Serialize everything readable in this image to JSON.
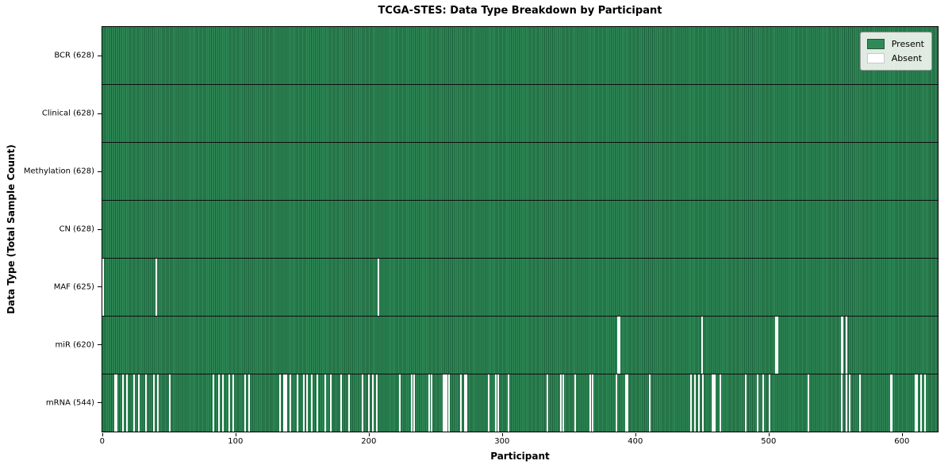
{
  "title": "TCGA-STES: Data Type Breakdown by Participant",
  "xlabel": "Participant",
  "ylabel": "Data Type (Total Sample Count)",
  "legend": {
    "present_label": "Present",
    "absent_label": "Absent"
  },
  "colors": {
    "present": "#2e8b57",
    "present_edge": "#1d5e3b",
    "absent": "#fcfcfc",
    "background": "#ffffff"
  },
  "chart_data": {
    "type": "heatmap",
    "title": "TCGA-STES: Data Type Breakdown by Participant",
    "xlabel": "Participant",
    "ylabel": "Data Type (Total Sample Count)",
    "legend_entries": [
      "Present",
      "Absent"
    ],
    "legend_position": "upper right",
    "n_participants": 628,
    "x_ticks": [
      0,
      100,
      200,
      300,
      400,
      500,
      600
    ],
    "x_range": [
      0,
      627
    ],
    "rows": [
      {
        "label": "BCR (628)",
        "data_type": "BCR",
        "present_count": 628,
        "absent_participants": []
      },
      {
        "label": "Clinical (628)",
        "data_type": "Clinical",
        "present_count": 628,
        "absent_participants": []
      },
      {
        "label": "Methylation (628)",
        "data_type": "Methylation",
        "present_count": 628,
        "absent_participants": []
      },
      {
        "label": "CN (628)",
        "data_type": "CN",
        "present_count": 628,
        "absent_participants": []
      },
      {
        "label": "MAF (625)",
        "data_type": "MAF",
        "present_count": 625,
        "absent_participants": [
          0,
          40,
          207
        ]
      },
      {
        "label": "miR (620)",
        "data_type": "miR",
        "present_count": 620,
        "absent_participants": [
          387,
          388,
          450,
          506,
          507,
          555,
          556,
          559
        ]
      },
      {
        "label": "mRNA (544)",
        "data_type": "mRNA",
        "present_count": 544,
        "absent_participants": [
          9,
          10,
          15,
          18,
          23,
          27,
          32,
          38,
          41,
          50,
          83,
          87,
          90,
          95,
          98,
          107,
          110,
          133,
          136,
          137,
          138,
          141,
          146,
          151,
          153,
          157,
          161,
          167,
          171,
          179,
          185,
          195,
          200,
          203,
          206,
          223,
          232,
          234,
          245,
          247,
          256,
          257,
          258,
          260,
          269,
          272,
          273,
          290,
          295,
          297,
          305,
          334,
          344,
          346,
          355,
          366,
          368,
          386,
          393,
          394,
          411,
          442,
          445,
          448,
          451,
          458,
          459,
          460,
          464,
          483,
          492,
          496,
          501,
          530,
          555,
          559,
          561,
          569,
          592,
          593,
          611,
          612,
          615,
          618
        ]
      }
    ]
  }
}
